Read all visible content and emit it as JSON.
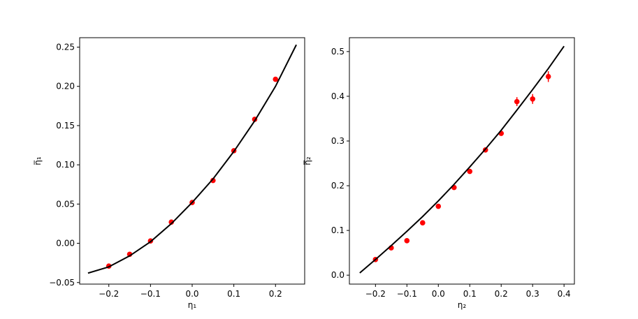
{
  "chart_data": [
    {
      "type": "scatter",
      "xlabel": "η₁",
      "ylabel": "η̅₁",
      "xlim": [
        -0.27,
        0.27
      ],
      "ylim": [
        -0.052,
        0.262
      ],
      "xticks": [
        -0.2,
        -0.1,
        0.0,
        0.1,
        0.2
      ],
      "xtick_labels": [
        "−0.2",
        "−0.1",
        "0.0",
        "0.1",
        "0.2"
      ],
      "yticks": [
        -0.05,
        0.0,
        0.05,
        0.1,
        0.15,
        0.2,
        0.25
      ],
      "ytick_labels": [
        "−0.05",
        "0.00",
        "0.05",
        "0.10",
        "0.15",
        "0.20",
        "0.25"
      ],
      "grid": false,
      "series": [
        {
          "kind": "points",
          "color": "#ff0000",
          "x": [
            -0.2,
            -0.15,
            -0.1,
            -0.05,
            0.0,
            0.05,
            0.1,
            0.15,
            0.2
          ],
          "y": [
            -0.029,
            -0.014,
            0.003,
            0.027,
            0.052,
            0.08,
            0.118,
            0.158,
            0.209
          ],
          "yerr": [
            0.002,
            0.002,
            0.002,
            0.002,
            0.002,
            0.002,
            0.002,
            0.002,
            0.002
          ]
        },
        {
          "kind": "line",
          "color": "#000000",
          "x": [
            -0.25,
            -0.2,
            -0.15,
            -0.1,
            -0.05,
            0.0,
            0.05,
            0.1,
            0.15,
            0.2,
            0.25
          ],
          "y": [
            -0.038,
            -0.03,
            -0.016,
            0.002,
            0.025,
            0.052,
            0.082,
            0.117,
            0.156,
            0.2,
            0.253
          ]
        }
      ]
    },
    {
      "type": "scatter",
      "xlabel": "η₂",
      "ylabel": "η̅₂",
      "xlim": [
        -0.283,
        0.433
      ],
      "ylim": [
        -0.02,
        0.531
      ],
      "xticks": [
        -0.2,
        -0.1,
        0.0,
        0.1,
        0.2,
        0.3,
        0.4
      ],
      "xtick_labels": [
        "−0.2",
        "−0.1",
        "0.0",
        "0.1",
        "0.2",
        "0.3",
        "0.4"
      ],
      "yticks": [
        0.0,
        0.1,
        0.2,
        0.3,
        0.4,
        0.5
      ],
      "ytick_labels": [
        "0.0",
        "0.1",
        "0.2",
        "0.3",
        "0.4",
        "0.5"
      ],
      "grid": false,
      "series": [
        {
          "kind": "points",
          "color": "#ff0000",
          "x": [
            -0.2,
            -0.15,
            -0.1,
            -0.05,
            0.0,
            0.05,
            0.1,
            0.15,
            0.2,
            0.25,
            0.3,
            0.35
          ],
          "y": [
            0.035,
            0.061,
            0.077,
            0.117,
            0.154,
            0.196,
            0.232,
            0.28,
            0.317,
            0.388,
            0.394,
            0.444
          ],
          "yerr": [
            0.003,
            0.003,
            0.003,
            0.003,
            0.003,
            0.003,
            0.003,
            0.003,
            0.004,
            0.01,
            0.011,
            0.012
          ]
        },
        {
          "kind": "line",
          "color": "#000000",
          "x": [
            -0.25,
            -0.2,
            -0.15,
            -0.1,
            -0.05,
            0.0,
            0.05,
            0.1,
            0.15,
            0.2,
            0.25,
            0.3,
            0.35,
            0.4
          ],
          "y": [
            0.005,
            0.035,
            0.066,
            0.098,
            0.131,
            0.166,
            0.203,
            0.242,
            0.282,
            0.324,
            0.369,
            0.415,
            0.462,
            0.512
          ]
        }
      ]
    }
  ]
}
